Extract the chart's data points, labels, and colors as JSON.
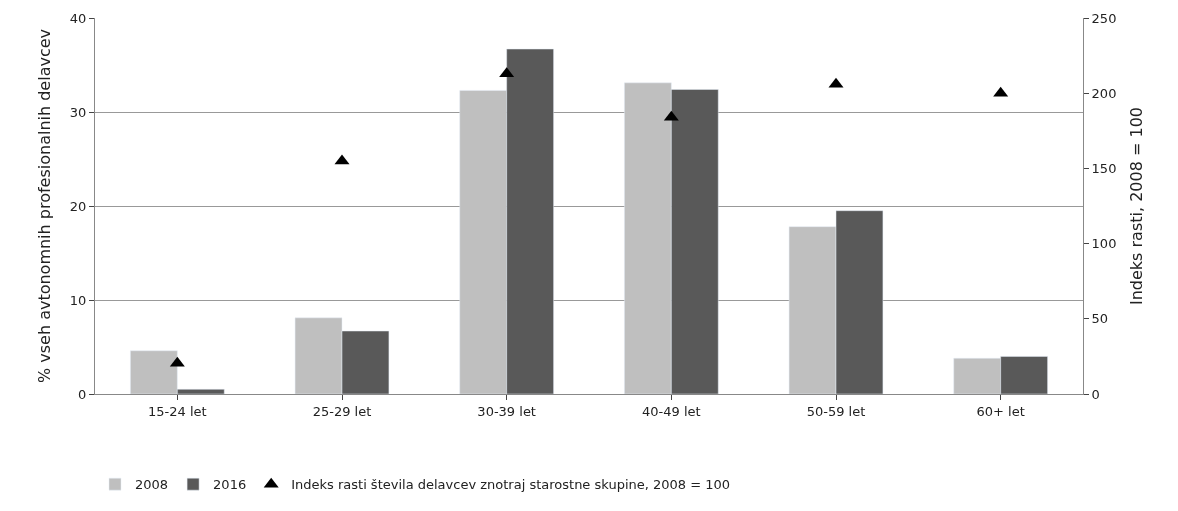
{
  "chart_data": {
    "type": "bar",
    "categories": [
      "15-24 let",
      "25-29 let",
      "30-39 let",
      "40-49 let",
      "50-59 let",
      "60+ let"
    ],
    "series": [
      {
        "name": "2008",
        "color": "#bfbfbf",
        "values": [
          4.6,
          8.1,
          32.3,
          33.1,
          17.8,
          3.8
        ]
      },
      {
        "name": "2016",
        "color": "#595959",
        "values": [
          0.5,
          6.7,
          36.7,
          32.4,
          19.5,
          4.0
        ]
      },
      {
        "name": "Indeks rasti števila delavcev znotraj starostne skupine, 2008 = 100",
        "type": "scatter",
        "axis": "y2",
        "color": "#000000",
        "marker": "triangle",
        "values": [
          20.5,
          155,
          213,
          184,
          206,
          200
        ]
      }
    ],
    "ylabel": "% vseh avtonomnih profesionalnih delavcev",
    "y2label": "Indeks rasti, 2008 = 100",
    "ylim": [
      0,
      40
    ],
    "yticks": [
      0,
      10,
      20,
      30,
      40
    ],
    "y2lim": [
      0,
      250
    ],
    "y2ticks": [
      0,
      50,
      100,
      150,
      200,
      250
    ],
    "grid": "y",
    "legend": "bottom"
  }
}
